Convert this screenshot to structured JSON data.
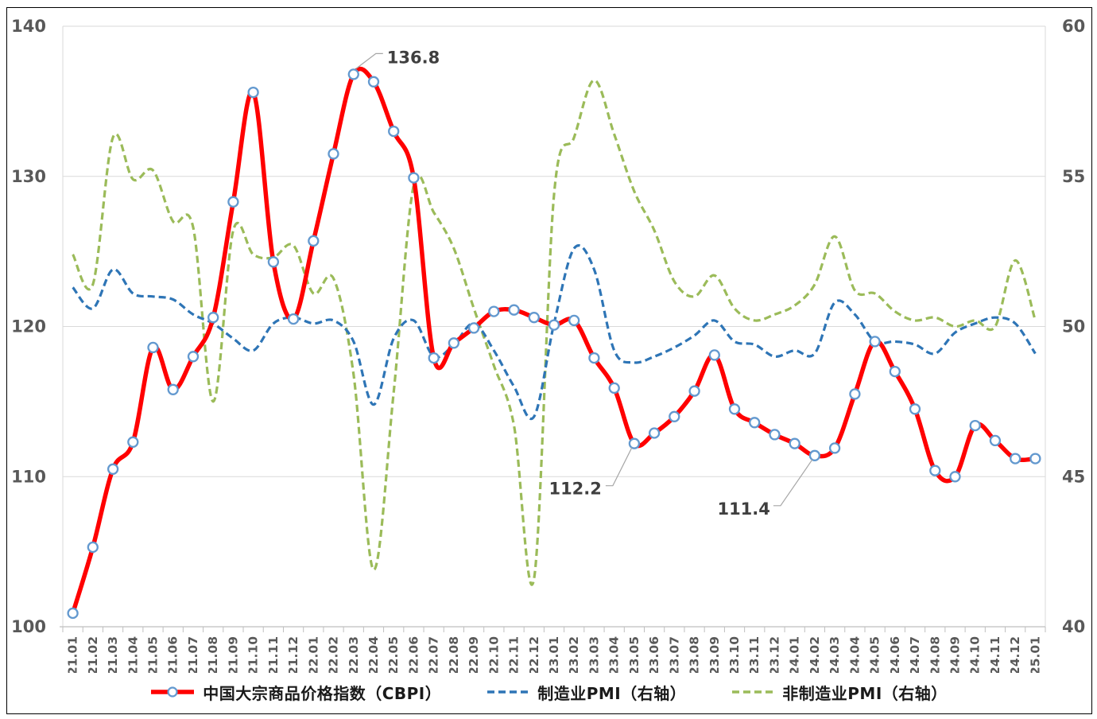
{
  "figure": {
    "background_color": "#FFFFFF",
    "border_color": "#000000"
  },
  "chart_data": {
    "type": "line",
    "title": "",
    "grid": true,
    "legend_position": "bottom",
    "categories": [
      "21.01",
      "21.02",
      "21.03",
      "21.04",
      "21.05",
      "21.06",
      "21.07",
      "21.08",
      "21.09",
      "21.10",
      "21.11",
      "21.12",
      "22.01",
      "22.02",
      "22.03",
      "22.04",
      "22.05",
      "22.06",
      "22.07",
      "22.08",
      "22.09",
      "22.10",
      "22.11",
      "22.12",
      "23.01",
      "23.02",
      "23.03",
      "23.04",
      "23.05",
      "23.06",
      "23.07",
      "23.08",
      "23.09",
      "23.10",
      "23.11",
      "23.12",
      "24.01",
      "24.02",
      "24.03",
      "24.04",
      "24.05",
      "24.06",
      "24.07",
      "24.08",
      "24.09",
      "24.10",
      "24.11",
      "24.12",
      "25.01"
    ],
    "series": [
      {
        "name": "中国大宗商品价格指数（CBPI）",
        "axis": "left",
        "color": "#FF0000",
        "line_style": "solid",
        "line_width": 5.5,
        "markers": true,
        "values": [
          100.9,
          105.3,
          110.5,
          112.3,
          118.6,
          115.8,
          118.0,
          120.6,
          128.3,
          135.6,
          124.3,
          120.5,
          125.7,
          131.5,
          136.8,
          136.3,
          133.0,
          129.9,
          117.9,
          118.9,
          119.9,
          121.0,
          121.1,
          120.6,
          120.1,
          120.4,
          117.9,
          115.9,
          112.2,
          112.9,
          114.0,
          115.7,
          118.1,
          114.5,
          113.6,
          112.8,
          112.2,
          111.4,
          111.9,
          115.5,
          119.0,
          117.0,
          114.5,
          110.4,
          110.0,
          113.4,
          112.4,
          111.2,
          111.2
        ]
      },
      {
        "name": "制造业PMI（右轴）",
        "axis": "right",
        "color": "#2E75B6",
        "line_style": "dashed",
        "line_width": 3.2,
        "markers": false,
        "values": [
          51.3,
          50.6,
          51.9,
          51.1,
          51.0,
          50.9,
          50.4,
          50.1,
          49.6,
          49.2,
          50.1,
          50.3,
          50.1,
          50.2,
          49.5,
          47.4,
          49.6,
          50.2,
          49.0,
          49.4,
          50.1,
          49.2,
          48.0,
          47.0,
          50.1,
          52.6,
          51.9,
          49.2,
          48.8,
          49.0,
          49.3,
          49.7,
          50.2,
          49.5,
          49.4,
          49.0,
          49.2,
          49.1,
          50.8,
          50.4,
          49.5,
          49.5,
          49.4,
          49.1,
          49.8,
          50.1,
          50.3,
          50.1,
          49.1
        ]
      },
      {
        "name": "非制造业PMI（右轴）",
        "axis": "right",
        "color": "#9BBB59",
        "line_style": "dashed",
        "line_width": 3.2,
        "markers": false,
        "values": [
          52.4,
          51.4,
          56.3,
          54.9,
          55.2,
          53.5,
          53.3,
          47.5,
          53.2,
          52.4,
          52.3,
          52.7,
          51.1,
          51.6,
          48.4,
          41.9,
          47.8,
          54.7,
          53.8,
          52.6,
          50.6,
          48.7,
          46.7,
          41.6,
          54.4,
          56.3,
          58.2,
          56.4,
          54.5,
          53.2,
          51.5,
          51.0,
          51.7,
          50.6,
          50.2,
          50.4,
          50.7,
          51.4,
          53.0,
          51.2,
          51.1,
          50.5,
          50.2,
          50.3,
          50.0,
          50.2,
          50.0,
          52.2,
          50.2
        ]
      }
    ],
    "left_axis": {
      "min": 100,
      "max": 140,
      "step": 10,
      "tick_labels": [
        "100",
        "110",
        "120",
        "130",
        "140"
      ]
    },
    "right_axis": {
      "min": 40,
      "max": 60,
      "step": 5,
      "tick_labels": [
        "40",
        "45",
        "50",
        "55",
        "60"
      ]
    },
    "annotations": [
      {
        "label": "136.8",
        "series_index": 0,
        "category": "22.03"
      },
      {
        "label": "112.2",
        "series_index": 0,
        "category": "23.05"
      },
      {
        "label": "111.4",
        "series_index": 0,
        "category": "24.02"
      }
    ],
    "style": {
      "gridline_color": "#D9D9D9",
      "axis_line_color": "#BFBFBF",
      "axis_text_color": "#595959",
      "annotation_text_color": "#3F3F3F",
      "annotation_leader_color": "#A6A6A6",
      "marker_fill": "#FFFFFF",
      "marker_stroke": "#6399CF"
    }
  },
  "legend": {
    "sample_icons": [
      "red-solid-line-with-marker",
      "blue-dashed-line",
      "green-dashed-line"
    ]
  }
}
